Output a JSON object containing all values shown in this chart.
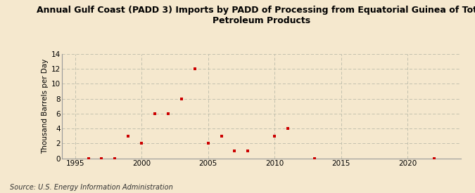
{
  "title": "Annual Gulf Coast (PADD 3) Imports by PADD of Processing from Equatorial Guinea of Total\nPetroleum Products",
  "ylabel": "Thousand Barrels per Day",
  "source": "Source: U.S. Energy Information Administration",
  "background_color": "#f5e8ce",
  "data_color": "#cc0000",
  "xlim": [
    1994,
    2024
  ],
  "ylim": [
    0,
    14
  ],
  "xticks": [
    1995,
    2000,
    2005,
    2010,
    2015,
    2020
  ],
  "yticks": [
    0,
    2,
    4,
    6,
    8,
    10,
    12,
    14
  ],
  "x": [
    1996,
    1997,
    1998,
    1999,
    2000,
    2001,
    2002,
    2003,
    2004,
    2005,
    2006,
    2007,
    2008,
    2010,
    2011,
    2013,
    2022
  ],
  "y": [
    0,
    0,
    0,
    3,
    2,
    6,
    6,
    8,
    12,
    2,
    3,
    1,
    1,
    3,
    4,
    0,
    0
  ]
}
